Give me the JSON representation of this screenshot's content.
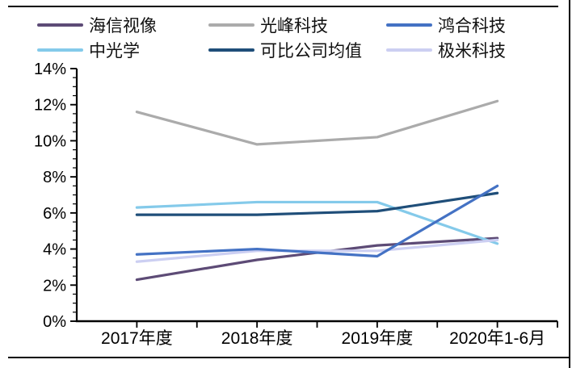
{
  "page": {
    "background": "#ffffff",
    "border_color": "#000000"
  },
  "chart_data": {
    "type": "line",
    "title": "",
    "categories": [
      "2017年度",
      "2018年度",
      "2019年度",
      "2020年1-6月"
    ],
    "series": [
      {
        "name": "海信视像",
        "color": "#5D4B76",
        "values": [
          2.3,
          3.4,
          4.2,
          4.6
        ]
      },
      {
        "name": "光峰科技",
        "color": "#ABABAB",
        "values": [
          11.6,
          9.8,
          10.2,
          12.2
        ]
      },
      {
        "name": "鸿合科技",
        "color": "#4472C4",
        "values": [
          3.7,
          4.0,
          3.6,
          7.5
        ]
      },
      {
        "name": "中光学",
        "color": "#84CAEA",
        "values": [
          6.3,
          6.6,
          6.6,
          4.3
        ]
      },
      {
        "name": "可比公司均值",
        "color": "#1F4E79",
        "values": [
          5.9,
          5.9,
          6.1,
          7.1
        ]
      },
      {
        "name": "极米科技",
        "color": "#CCCFF2",
        "values": [
          3.3,
          3.9,
          3.9,
          4.5
        ]
      }
    ],
    "ylim": [
      0,
      14
    ],
    "ytick_step": 2,
    "ytick_labels": [
      "0%",
      "2%",
      "4%",
      "6%",
      "8%",
      "10%",
      "12%",
      "14%"
    ],
    "yminor_step": 0.5,
    "unit": "percent",
    "grid": false,
    "legend_position": "top",
    "legend_columns": 3,
    "draw_order": [
      0,
      1,
      3,
      4,
      5,
      2
    ]
  }
}
